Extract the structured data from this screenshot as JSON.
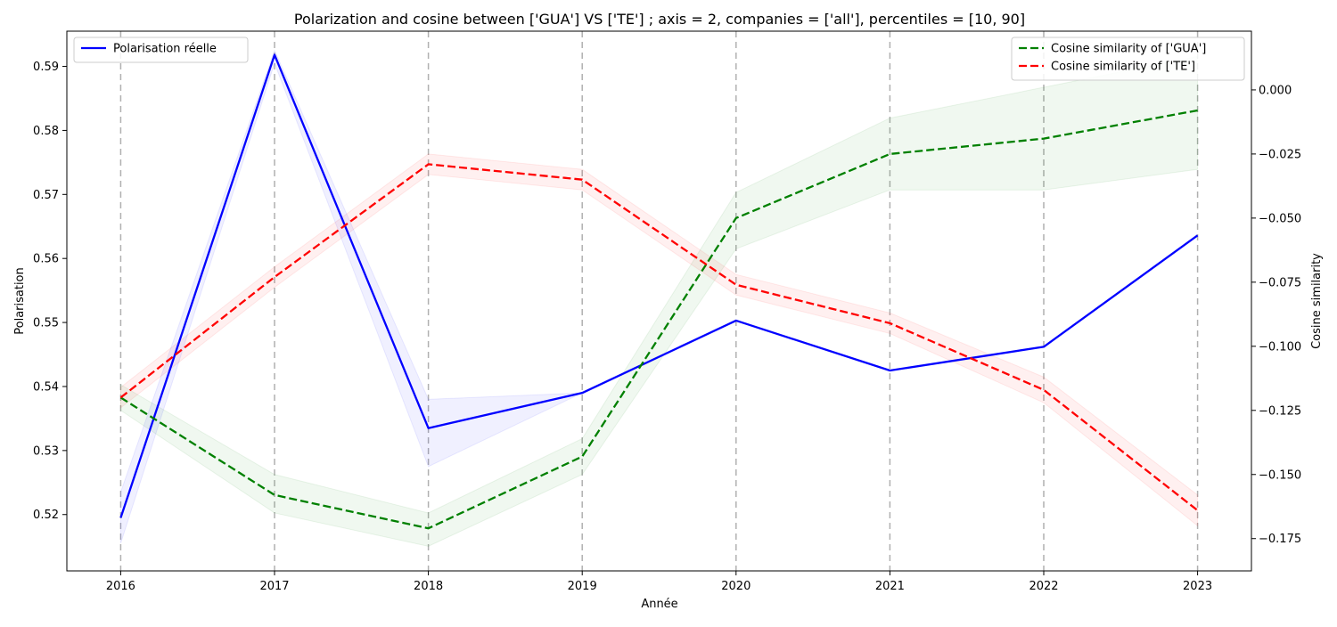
{
  "chart_data": {
    "type": "line",
    "title": "Polarization and cosine between ['GUA'] VS ['TE'] ; axis = 2, companies = ['all'], percentiles = [10, 90]",
    "xlabel": "Année",
    "ylabel_left": "Polarisation",
    "ylabel_right": "Cosine similarity",
    "x": [
      2016,
      2017,
      2018,
      2019,
      2020,
      2021,
      2022,
      2023
    ],
    "x_ticks": [
      "2016",
      "2017",
      "2018",
      "2019",
      "2020",
      "2021",
      "2022",
      "2023"
    ],
    "xlim": [
      2015.65,
      2023.35
    ],
    "ylim_left": [
      0.5112,
      0.5955
    ],
    "ylim_right": [
      -0.1876,
      0.0229
    ],
    "y_ticks_left": [
      "0.52",
      "0.53",
      "0.54",
      "0.55",
      "0.56",
      "0.57",
      "0.58",
      "0.59"
    ],
    "y_ticks_right": [
      "0.000",
      "−0.025",
      "−0.050",
      "−0.075",
      "−0.100",
      "−0.125",
      "−0.150",
      "−0.175"
    ],
    "vertical_grid": true,
    "series": [
      {
        "name": "Polarisation réelle",
        "axis": "left",
        "color": "#0000ff",
        "style": "solid",
        "values": [
          0.5195,
          0.5918,
          0.5335,
          0.539,
          0.5503,
          0.5425,
          0.5462,
          0.5636
        ],
        "band_low": [
          0.5155,
          0.5905,
          0.5275,
          0.539,
          0.5503,
          0.5425,
          0.5462,
          0.5636
        ],
        "band_high": [
          0.5235,
          0.5925,
          0.538,
          0.539,
          0.5503,
          0.5425,
          0.5462,
          0.5636
        ]
      },
      {
        "name": "Cosine similarity of ['GUA']",
        "axis": "right",
        "color": "#008000",
        "style": "dashed",
        "values": [
          -0.12,
          -0.158,
          -0.171,
          -0.143,
          -0.05,
          -0.025,
          -0.019,
          -0.008
        ],
        "band_low": [
          -0.125,
          -0.165,
          -0.178,
          -0.15,
          -0.062,
          -0.039,
          -0.039,
          -0.031
        ],
        "band_high": [
          -0.115,
          -0.15,
          -0.165,
          -0.136,
          -0.04,
          -0.011,
          0.001,
          0.013
        ]
      },
      {
        "name": "Cosine similarity of ['TE']",
        "axis": "right",
        "color": "#ff0000",
        "style": "dashed",
        "values": [
          -0.12,
          -0.073,
          -0.029,
          -0.035,
          -0.076,
          -0.091,
          -0.117,
          -0.164
        ],
        "band_low": [
          -0.124,
          -0.077,
          -0.033,
          -0.039,
          -0.08,
          -0.095,
          -0.122,
          -0.17
        ],
        "band_high": [
          -0.116,
          -0.069,
          -0.025,
          -0.031,
          -0.072,
          -0.087,
          -0.112,
          -0.158
        ]
      }
    ],
    "legends": [
      {
        "placement": "top-left",
        "entries": [
          "Polarisation réelle"
        ]
      },
      {
        "placement": "top-right",
        "entries": [
          "Cosine similarity of ['GUA']",
          "Cosine similarity of ['TE']"
        ]
      }
    ]
  }
}
